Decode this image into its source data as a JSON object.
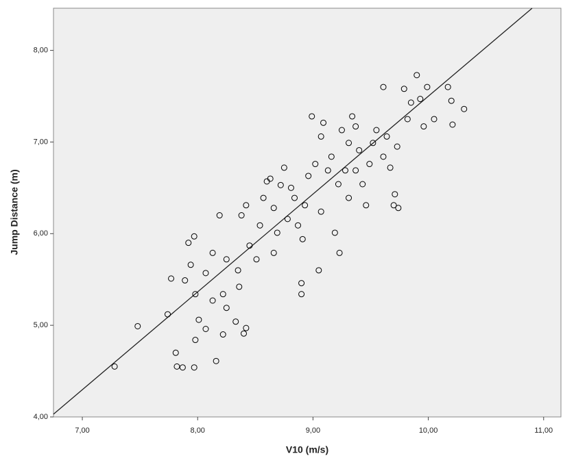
{
  "chart_data": {
    "type": "scatter",
    "x_label": "V10 (m/s)",
    "y_label": "Jump Distance (m)",
    "xlim": [
      6.75,
      11.15
    ],
    "ylim": [
      4,
      8.46
    ],
    "xticks": [
      {
        "value": 7,
        "label": "7,00"
      },
      {
        "value": 8,
        "label": "8,00"
      },
      {
        "value": 9,
        "label": "9,00"
      },
      {
        "value": 10,
        "label": "10,00"
      },
      {
        "value": 11,
        "label": "11,00"
      }
    ],
    "yticks": [
      {
        "value": 4,
        "label": "4,00"
      },
      {
        "value": 5,
        "label": "5,00"
      },
      {
        "value": 6,
        "label": "6,00"
      },
      {
        "value": 7,
        "label": "7,00"
      },
      {
        "value": 8,
        "label": "8,00"
      }
    ],
    "color": "#000000",
    "trendline": {
      "x": [
        6.75,
        10.9
      ],
      "y": [
        4.03,
        8.46
      ]
    },
    "x": [
      7.28,
      7.48,
      7.74,
      7.77,
      7.82,
      7.81,
      7.87,
      7.97,
      7.98,
      7.92,
      7.94,
      7.98,
      8.01,
      8.07,
      8.16,
      8.19,
      8.13,
      8.22,
      8.25,
      8.22,
      8.33,
      8.36,
      8.38,
      8.42,
      8.45,
      8.51,
      8.54,
      8.57,
      8.6,
      8.66,
      8.69,
      8.72,
      8.75,
      8.78,
      8.84,
      8.87,
      8.9,
      8.9,
      8.91,
      8.93,
      8.96,
      8.99,
      9.02,
      9.05,
      9.07,
      9.09,
      9.13,
      9.16,
      9.19,
      9.22,
      9.23,
      9.25,
      9.28,
      9.31,
      9.34,
      9.37,
      9.4,
      9.43,
      9.46,
      9.49,
      9.52,
      9.55,
      9.61,
      9.64,
      9.67,
      9.7,
      9.71,
      9.73,
      9.74,
      9.79,
      9.82,
      9.85,
      9.9,
      9.93,
      9.96,
      9.99,
      10.05,
      10.17,
      10.2,
      10.21,
      10.31,
      9.61,
      9.07,
      8.07,
      7.89,
      8.25,
      8.63,
      8.81,
      8.35,
      8.42,
      8.4,
      7.97,
      8.13,
      9.37,
      9.31,
      8.66
    ],
    "y": [
      4.55,
      4.99,
      5.12,
      5.51,
      4.55,
      4.7,
      4.54,
      4.54,
      4.84,
      5.9,
      5.66,
      5.34,
      5.06,
      4.96,
      4.61,
      6.2,
      5.79,
      5.34,
      5.19,
      4.9,
      5.04,
      5.42,
      6.2,
      6.31,
      5.87,
      5.72,
      6.09,
      6.39,
      6.57,
      6.28,
      6.01,
      6.53,
      6.72,
      6.16,
      6.39,
      6.09,
      5.46,
      5.34,
      5.94,
      6.31,
      6.63,
      7.28,
      6.76,
      5.6,
      6.24,
      7.21,
      6.69,
      6.84,
      6.01,
      6.54,
      5.79,
      7.13,
      6.69,
      6.99,
      7.28,
      6.69,
      6.91,
      6.54,
      6.31,
      6.76,
      6.99,
      7.13,
      6.84,
      7.06,
      6.72,
      6.31,
      6.43,
      6.95,
      6.28,
      7.58,
      7.25,
      7.43,
      7.73,
      7.47,
      7.17,
      7.6,
      7.25,
      7.6,
      7.45,
      7.19,
      7.36,
      7.6,
      7.06,
      5.57,
      5.49,
      5.72,
      6.6,
      6.5,
      5.6,
      4.97,
      4.91,
      5.97,
      5.27,
      7.17,
      6.39,
      5.79
    ]
  }
}
